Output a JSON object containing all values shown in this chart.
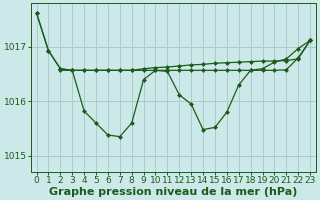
{
  "background_color": "#cce8e8",
  "plot_bg_color": "#cce8e8",
  "grid_color": "#aacccc",
  "line_color": "#1a5c1a",
  "xlabel": "Graphe pression niveau de la mer (hPa)",
  "ylim": [
    1014.7,
    1017.8
  ],
  "xlim": [
    -0.5,
    23.5
  ],
  "yticks": [
    1015,
    1016,
    1017
  ],
  "xticks": [
    0,
    1,
    2,
    3,
    4,
    5,
    6,
    7,
    8,
    9,
    10,
    11,
    12,
    13,
    14,
    15,
    16,
    17,
    18,
    19,
    20,
    21,
    22,
    23
  ],
  "tick_fontsize": 6.5,
  "xlabel_fontsize": 8,
  "xlabel_fontweight": "bold",
  "s1": [
    1017.62,
    1016.93,
    1016.6,
    1016.57,
    1016.57,
    1016.57,
    1016.57,
    1016.57,
    1016.57,
    1016.6,
    1016.62,
    1016.63,
    1016.65,
    1016.67,
    1016.68,
    1016.7,
    1016.71,
    1016.72,
    1016.73,
    1016.74,
    1016.74,
    1016.75,
    1016.78,
    1017.12
  ],
  "s2": [
    1017.62,
    1016.93,
    1016.6,
    1016.57,
    1015.82,
    1015.6,
    1015.38,
    1015.35,
    1015.6,
    1016.4,
    1016.57,
    1016.55,
    1016.12,
    1015.95,
    1015.48,
    1015.52,
    1015.8,
    1016.3,
    1016.57,
    1016.6,
    1016.72,
    1016.78,
    1016.97,
    1017.12
  ],
  "s3x": [
    2,
    3,
    4,
    5,
    6,
    7,
    8,
    9,
    10,
    11,
    12,
    13,
    14,
    15,
    16,
    17,
    18,
    19,
    20,
    21,
    22,
    23
  ],
  "s3": [
    1016.57,
    1016.57,
    1016.57,
    1016.57,
    1016.57,
    1016.57,
    1016.57,
    1016.57,
    1016.57,
    1016.57,
    1016.57,
    1016.57,
    1016.57,
    1016.57,
    1016.57,
    1016.57,
    1016.57,
    1016.57,
    1016.57,
    1016.58,
    1016.8,
    1017.12
  ]
}
